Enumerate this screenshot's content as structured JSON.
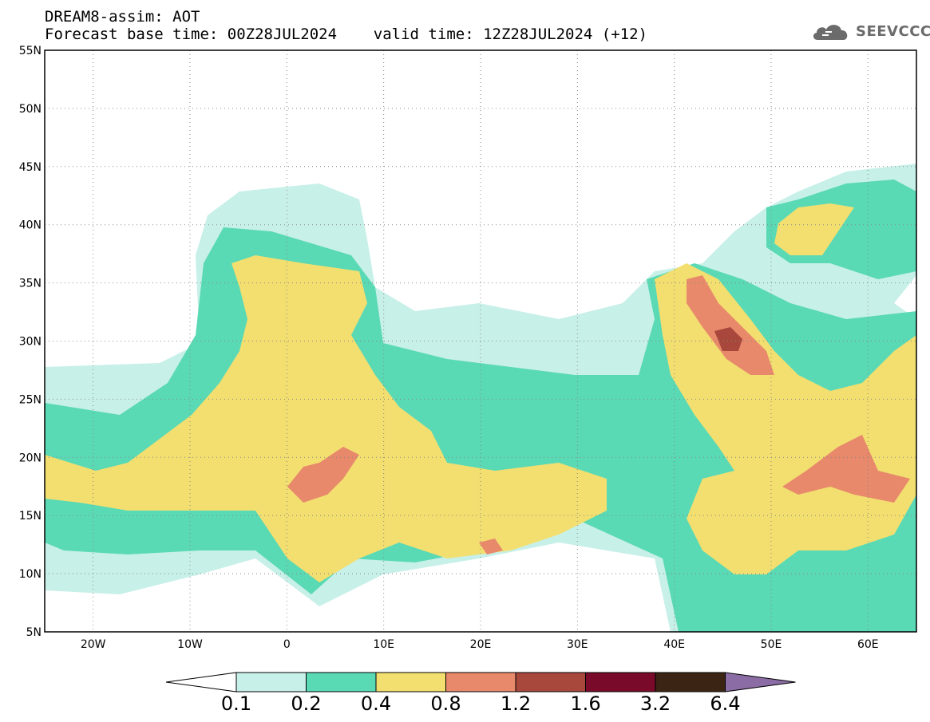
{
  "header": {
    "line1": "DREAM8-assim: AOT",
    "line2": "Forecast base time: 00Z28JUL2024    valid time: 12Z28JUL2024 (+12)"
  },
  "logo": {
    "text": "SEEVCCC",
    "icon": "cloud-icon"
  },
  "map": {
    "lon_range": [
      -25,
      65
    ],
    "lat_range": [
      5,
      55
    ],
    "lat_ticks": [
      "55N",
      "50N",
      "45N",
      "40N",
      "35N",
      "30N",
      "25N",
      "20N",
      "15N",
      "10N",
      "5N"
    ],
    "lon_ticks": [
      "20W",
      "10W",
      "0",
      "10E",
      "20E",
      "30E",
      "40E",
      "50E",
      "60E"
    ],
    "grid": true
  },
  "colorbar": {
    "levels": [
      "0.1",
      "0.2",
      "0.4",
      "0.8",
      "1.2",
      "1.6",
      "3.2",
      "6.4"
    ],
    "colors": [
      "#ffffff",
      "#c7f0e8",
      "#5ad9b5",
      "#f2df70",
      "#e8896b",
      "#a8473c",
      "#7a0a2a",
      "#3c2415",
      "#8c6ca4"
    ]
  }
}
